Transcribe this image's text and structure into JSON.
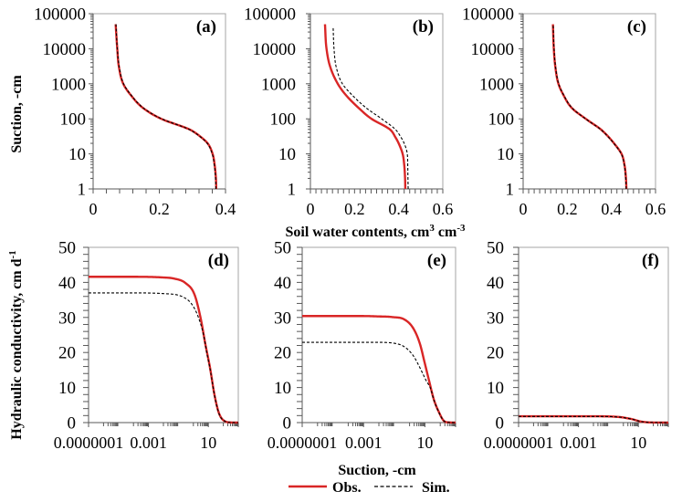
{
  "figure": {
    "top_ylabel": "Suction, -cm",
    "top_xlabel": [
      {
        "text": "Soil water contents, cm"
      },
      {
        "text": "3"
      },
      {
        "text": " cm"
      },
      {
        "text": "-3"
      }
    ],
    "bottom_ylabel": [
      {
        "text": "Hydraulic conductivity, cm d"
      },
      {
        "text": "-1"
      }
    ],
    "bottom_xlabel": "Suction, -cm",
    "legend": [
      {
        "label": "Obs.",
        "color": "#d92626",
        "style": "solid"
      },
      {
        "label": "Sim.",
        "color": "#000000",
        "style": "dashed"
      }
    ]
  },
  "chart_data": [
    {
      "id": "a",
      "panel_label": "(a)",
      "type": "line",
      "xlabel": "Soil water contents, cm3 cm-3",
      "ylabel": "Suction, -cm",
      "xscale": "linear",
      "yscale": "log",
      "xlim": [
        0,
        0.4
      ],
      "ylim": [
        1,
        100000
      ],
      "xticks": [
        0,
        0.2,
        0.4
      ],
      "xticklabels": [
        "0",
        "0.2",
        "0.4"
      ],
      "x_minor_step": 0.04,
      "yticks": [
        1,
        10,
        100,
        1000,
        10000,
        100000
      ],
      "yticklabels": [
        "1",
        "10",
        "100",
        "1000",
        "10000",
        "100000"
      ],
      "series": [
        {
          "name": "Obs.",
          "style": "solid",
          "color": "#d92626",
          "x": [
            0.372,
            0.371,
            0.367,
            0.361,
            0.346,
            0.326,
            0.291,
            0.206,
            0.152,
            0.112,
            0.091,
            0.078,
            0.073,
            0.068
          ],
          "y": [
            1,
            2,
            5,
            10,
            20,
            30,
            50,
            100,
            200,
            500,
            1000,
            3000,
            10000,
            50000
          ]
        },
        {
          "name": "Sim.",
          "style": "dashed",
          "color": "#000000",
          "x": [
            0.371,
            0.37,
            0.366,
            0.36,
            0.345,
            0.325,
            0.29,
            0.207,
            0.153,
            0.113,
            0.092,
            0.079,
            0.073,
            0.069
          ],
          "y": [
            1,
            2,
            5,
            10,
            20,
            30,
            50,
            100,
            200,
            500,
            1000,
            3000,
            10000,
            50000
          ]
        }
      ]
    },
    {
      "id": "b",
      "panel_label": "(b)",
      "type": "line",
      "xlabel": "Soil water contents, cm3 cm-3",
      "ylabel": "Suction, -cm",
      "xscale": "linear",
      "yscale": "log",
      "xlim": [
        0,
        0.6
      ],
      "ylim": [
        1,
        100000
      ],
      "xticks": [
        0,
        0.2,
        0.4,
        0.6
      ],
      "xticklabels": [
        "0",
        "0.2",
        "0.4",
        "0.6"
      ],
      "x_minor_step": 0.025,
      "yticks": [
        1,
        10,
        100,
        1000,
        10000,
        100000
      ],
      "yticklabels": [
        "1",
        "10",
        "100",
        "1000",
        "10000",
        "100000"
      ],
      "series": [
        {
          "name": "Obs.",
          "style": "solid",
          "color": "#d92626",
          "x": [
            0.43,
            0.429,
            0.425,
            0.418,
            0.4,
            0.385,
            0.36,
            0.277,
            0.22,
            0.158,
            0.124,
            0.09,
            0.073,
            0.066
          ],
          "y": [
            1,
            2,
            5,
            10,
            20,
            30,
            50,
            100,
            200,
            500,
            1000,
            3000,
            10000,
            50000
          ]
        },
        {
          "name": "Sim.",
          "style": "dashed",
          "color": "#000000",
          "x": [
            0.443,
            0.442,
            0.441,
            0.439,
            0.425,
            0.41,
            0.385,
            0.323,
            0.255,
            0.186,
            0.145,
            0.117,
            0.107,
            0.103
          ],
          "y": [
            1,
            2,
            5,
            10,
            20,
            30,
            50,
            100,
            200,
            500,
            1000,
            3000,
            10000,
            40000
          ]
        }
      ]
    },
    {
      "id": "c",
      "panel_label": "(c)",
      "type": "line",
      "xlabel": "Soil water contents, cm3 cm-3",
      "ylabel": "Suction, -cm",
      "xscale": "linear",
      "yscale": "log",
      "xlim": [
        0,
        0.6
      ],
      "ylim": [
        1,
        100000
      ],
      "xticks": [
        0,
        0.2,
        0.4,
        0.6
      ],
      "xticklabels": [
        "0",
        "0.2",
        "0.4",
        "0.6"
      ],
      "x_minor_step": 0.025,
      "yticks": [
        1,
        10,
        100,
        1000,
        10000,
        100000
      ],
      "yticklabels": [
        "1",
        "10",
        "100",
        "1000",
        "10000",
        "100000"
      ],
      "series": [
        {
          "name": "Obs.",
          "style": "solid",
          "color": "#d92626",
          "x": [
            0.468,
            0.466,
            0.459,
            0.446,
            0.412,
            0.388,
            0.352,
            0.284,
            0.222,
            0.181,
            0.16,
            0.146,
            0.139,
            0.135
          ],
          "y": [
            1,
            2,
            5,
            10,
            20,
            30,
            50,
            100,
            200,
            500,
            1000,
            3000,
            10000,
            50000
          ]
        },
        {
          "name": "Sim.",
          "style": "dashed",
          "color": "#000000",
          "x": [
            0.467,
            0.465,
            0.458,
            0.445,
            0.411,
            0.387,
            0.351,
            0.283,
            0.223,
            0.182,
            0.161,
            0.147,
            0.14,
            0.136
          ],
          "y": [
            1,
            2,
            5,
            10,
            20,
            30,
            50,
            100,
            200,
            500,
            1000,
            3000,
            10000,
            50000
          ]
        }
      ]
    },
    {
      "id": "d",
      "panel_label": "(d)",
      "type": "line",
      "xlabel": "Suction, -cm",
      "ylabel": "Hydraulic conductivity, cm d-1",
      "xscale": "log",
      "yscale": "linear",
      "xlim": [
        1e-07,
        1000
      ],
      "ylim": [
        0,
        50
      ],
      "xticks": [
        1e-07,
        0.001,
        10
      ],
      "xticklabels": [
        "0.0000001",
        "0.001",
        "10"
      ],
      "yticks": [
        0,
        10,
        20,
        30,
        40,
        50
      ],
      "yticklabels": [
        "0",
        "10",
        "20",
        "30",
        "40",
        "50"
      ],
      "y_minor_step": 2,
      "series": [
        {
          "name": "Obs.",
          "style": "solid",
          "color": "#d92626",
          "x": [
            1e-07,
            0.0001,
            0.01,
            0.05,
            0.3,
            1.2,
            3.2,
            6.3,
            13,
            26,
            52,
            140,
            300,
            1000
          ],
          "y": [
            41.6,
            41.6,
            41.4,
            41.1,
            39.8,
            36.5,
            29.4,
            22.4,
            15.6,
            7.8,
            2.6,
            0.3,
            0.05,
            0
          ]
        },
        {
          "name": "Sim.",
          "style": "dashed",
          "color": "#000000",
          "x": [
            1e-07,
            0.0001,
            0.01,
            0.19,
            0.78,
            2.1,
            4.8,
            8,
            13,
            26,
            52,
            140,
            300,
            1000
          ],
          "y": [
            37.0,
            37.0,
            36.8,
            35.9,
            33.8,
            30.2,
            25.0,
            19.8,
            15.4,
            7.7,
            2.5,
            0.3,
            0.05,
            0
          ]
        }
      ]
    },
    {
      "id": "e",
      "panel_label": "(e)",
      "type": "line",
      "xlabel": "Suction, -cm",
      "ylabel": "Hydraulic conductivity, cm d-1",
      "xscale": "log",
      "yscale": "linear",
      "xlim": [
        1e-07,
        1000
      ],
      "ylim": [
        0,
        50
      ],
      "xticks": [
        1e-07,
        0.001,
        10
      ],
      "xticklabels": [
        "0.0000001",
        "0.001",
        "10"
      ],
      "yticks": [
        0,
        10,
        20,
        30,
        40,
        50
      ],
      "yticklabels": [
        "0",
        "10",
        "20",
        "30",
        "40",
        "50"
      ],
      "y_minor_step": 2,
      "series": [
        {
          "name": "Obs.",
          "style": "solid",
          "color": "#d92626",
          "x": [
            1e-07,
            0.001,
            0.0078,
            0.078,
            0.47,
            1.8,
            4.8,
            9.5,
            18.6,
            37,
            74,
            195,
            400,
            1000
          ],
          "y": [
            30.4,
            30.4,
            30.3,
            30.1,
            29.4,
            26.8,
            22.4,
            17.2,
            12.0,
            6.8,
            3.4,
            0.3,
            0.05,
            0
          ]
        },
        {
          "name": "Sim.",
          "style": "dashed",
          "color": "#000000",
          "x": [
            1e-07,
            0.001,
            0.0078,
            0.078,
            0.47,
            1.8,
            4.8,
            12,
            24,
            37,
            74,
            195,
            400,
            1000
          ],
          "y": [
            22.9,
            22.9,
            22.9,
            22.7,
            21.6,
            19.0,
            15.6,
            12.0,
            9.6,
            6.7,
            3.3,
            0.3,
            0.05,
            0
          ]
        }
      ]
    },
    {
      "id": "f",
      "panel_label": "(f)",
      "type": "line",
      "xlabel": "Suction, -cm",
      "ylabel": "Hydraulic conductivity, cm d-1",
      "xscale": "log",
      "yscale": "linear",
      "xlim": [
        1e-07,
        1000
      ],
      "ylim": [
        0,
        50
      ],
      "xticks": [
        1e-07,
        0.001,
        10
      ],
      "xticklabels": [
        "0.0000001",
        "0.001",
        "10"
      ],
      "yticks": [
        0,
        10,
        20,
        30,
        40,
        50
      ],
      "yticklabels": [
        "0",
        "10",
        "20",
        "30",
        "40",
        "50"
      ],
      "y_minor_step": 2,
      "series": [
        {
          "name": "Obs.",
          "style": "solid",
          "color": "#d92626",
          "x": [
            1e-07,
            0.01,
            0.5,
            3.6,
            15,
            60,
            1000
          ],
          "y": [
            1.8,
            1.8,
            1.6,
            1.0,
            0.3,
            0.05,
            0
          ]
        },
        {
          "name": "Sim.",
          "style": "dashed",
          "color": "#000000",
          "x": [
            1e-07,
            0.01,
            0.5,
            3.6,
            15,
            60,
            1000
          ],
          "y": [
            1.75,
            1.75,
            1.58,
            1.0,
            0.3,
            0.05,
            0
          ]
        }
      ]
    }
  ]
}
